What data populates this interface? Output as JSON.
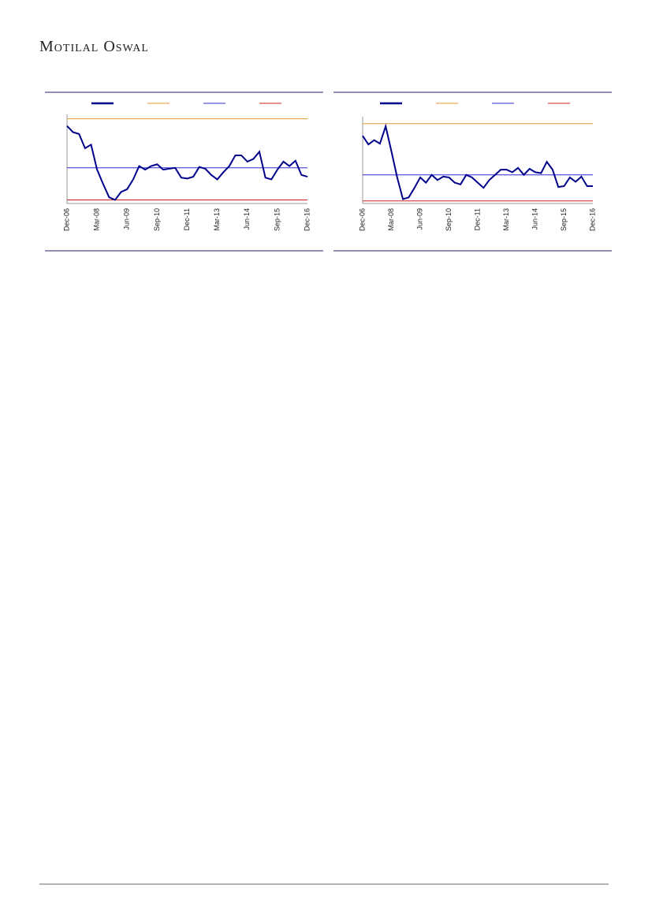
{
  "header": {
    "brand": "Motilal Oswal"
  },
  "chart_data": [
    {
      "type": "line",
      "categories": [
        "Dec-06",
        null,
        null,
        null,
        null,
        "Mar-08",
        null,
        null,
        null,
        null,
        "Jun-09",
        null,
        null,
        null,
        null,
        "Sep-10",
        null,
        null,
        null,
        null,
        "Dec-11",
        null,
        null,
        null,
        null,
        "Mar-13",
        null,
        null,
        null,
        null,
        "Jun-14",
        null,
        null,
        null,
        null,
        "Sep-15",
        null,
        null,
        null,
        null,
        "Dec-16"
      ],
      "series": [
        {
          "color": "#00008b",
          "values": [
            87,
            80,
            78,
            62,
            66,
            38,
            22,
            7,
            4,
            13,
            16,
            27,
            42,
            38,
            42,
            44,
            38,
            39,
            40,
            29,
            28,
            30,
            41,
            39,
            32,
            27,
            35,
            42,
            54,
            54,
            47,
            50,
            58,
            29,
            27,
            38,
            47,
            42,
            48,
            32,
            30
          ]
        }
      ],
      "hlines": [
        {
          "color": "#e8962e",
          "value": 95
        },
        {
          "color": "#2b2bd6",
          "value": 40
        },
        {
          "color": "#cc1f1f",
          "value": 4
        }
      ],
      "ylim": [
        0,
        100
      ]
    },
    {
      "type": "line",
      "categories": [
        "Dec-06",
        null,
        null,
        null,
        null,
        "Mar-08",
        null,
        null,
        null,
        null,
        "Jun-09",
        null,
        null,
        null,
        null,
        "Sep-10",
        null,
        null,
        null,
        null,
        "Dec-11",
        null,
        null,
        null,
        null,
        "Mar-13",
        null,
        null,
        null,
        null,
        "Jun-14",
        null,
        null,
        null,
        null,
        "Sep-15",
        null,
        null,
        null,
        null,
        "Dec-16"
      ],
      "series": [
        {
          "color": "#00008b",
          "values": [
            78,
            68,
            73,
            69,
            89,
            60,
            30,
            5,
            7,
            18,
            30,
            24,
            33,
            27,
            31,
            30,
            24,
            22,
            33,
            30,
            24,
            18,
            27,
            33,
            39,
            39,
            36,
            41,
            33,
            40,
            36,
            35,
            48,
            39,
            19,
            20,
            30,
            25,
            31,
            20,
            20
          ]
        }
      ],
      "hlines": [
        {
          "color": "#e8962e",
          "value": 92
        },
        {
          "color": "#2b2bd6",
          "value": 33
        },
        {
          "color": "#cc1f1f",
          "value": 3
        }
      ],
      "ylim": [
        0,
        100
      ]
    }
  ]
}
